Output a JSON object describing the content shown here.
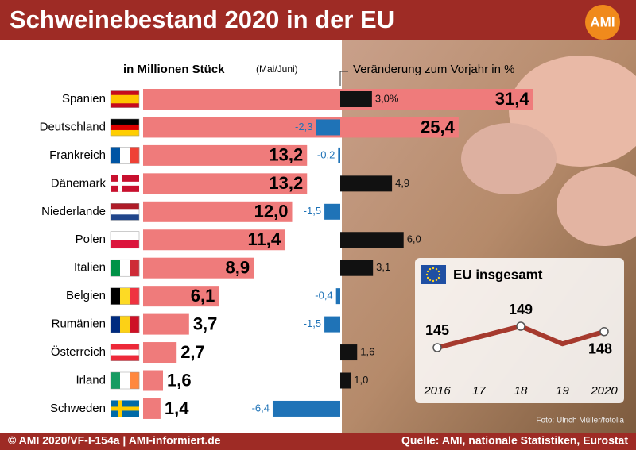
{
  "header": {
    "title": "Schweinebestand 2020 in der EU",
    "logo": "AMI"
  },
  "chart_data": [
    {
      "type": "bar",
      "orientation": "horizontal",
      "title": "in Millionen Stück",
      "subtitle": "(Mai/Juni)",
      "categories": [
        "Spanien",
        "Deutschland",
        "Frankreich",
        "Dänemark",
        "Niederlande",
        "Polen",
        "Italien",
        "Belgien",
        "Rumänien",
        "Österreich",
        "Irland",
        "Schweden"
      ],
      "values": [
        31.4,
        25.4,
        13.2,
        13.2,
        12.0,
        11.4,
        8.9,
        6.1,
        3.7,
        2.7,
        1.6,
        1.4
      ],
      "value_labels": [
        "31,4",
        "25,4",
        "13,2",
        "13,2",
        "12,0",
        "11,4",
        "8,9",
        "6,1",
        "3,7",
        "2,7",
        "1,6",
        "1,4"
      ],
      "color": "#ef7b7b",
      "xlim": [
        0,
        32
      ]
    },
    {
      "type": "bar",
      "orientation": "horizontal",
      "title": "Veränderung zum Vorjahr in %",
      "values": [
        3.0,
        -2.3,
        -0.2,
        4.9,
        -1.5,
        6.0,
        3.1,
        -0.4,
        -1.5,
        1.6,
        1.0,
        -6.4
      ],
      "value_labels": [
        "3,0%",
        "-2,3",
        "-0,2",
        "4,9",
        "-1,5",
        "6,0",
        "3,1",
        "-0,4",
        "-1,5",
        "1,6",
        "1,0",
        "-6,4"
      ],
      "positive_color": "#111111",
      "negative_color": "#1f73b7",
      "xlim": [
        -7,
        7
      ]
    },
    {
      "type": "line",
      "title": "EU insgesamt",
      "categories": [
        "2016",
        "17",
        "18",
        "19",
        "2020"
      ],
      "values": [
        145,
        147,
        149,
        145.7,
        148
      ],
      "value_labels": [
        "145",
        null,
        "149",
        null,
        "148"
      ],
      "color": "#a63a2e",
      "ylim": [
        141,
        153
      ]
    }
  ],
  "footer": {
    "left": "© AMI 2020/VF-I-154a | AMI-informiert.de",
    "right": "Quelle: AMI, nationale Statistiken, Eurostat",
    "photo_credit": "Foto: Ulrich Müller/fotolia"
  }
}
